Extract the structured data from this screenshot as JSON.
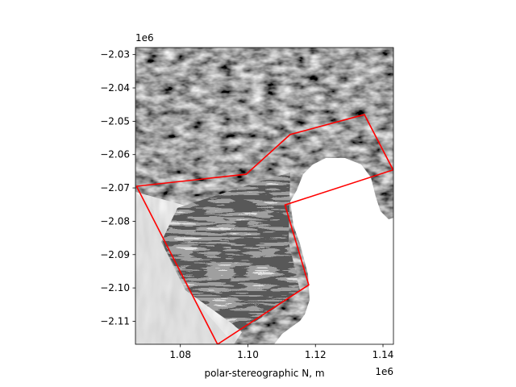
{
  "chart_data": {
    "type": "image",
    "xlabel": "polar-stereographic N, m",
    "ylabel": "",
    "x_offset_label": "1e6",
    "y_offset_label": "1e6",
    "xlim": [
      1.0667,
      1.1431
    ],
    "ylim": [
      -2.1169,
      -2.0279
    ],
    "x_ticks": [
      {
        "value": 1.08,
        "label": "1.08"
      },
      {
        "value": 1.1,
        "label": "1.10"
      },
      {
        "value": 1.12,
        "label": "1.12"
      },
      {
        "value": 1.14,
        "label": "1.14"
      }
    ],
    "y_ticks": [
      {
        "value": -2.03,
        "label": "−2.03"
      },
      {
        "value": -2.04,
        "label": "−2.04"
      },
      {
        "value": -2.05,
        "label": "−2.05"
      },
      {
        "value": -2.06,
        "label": "−2.06"
      },
      {
        "value": -2.07,
        "label": "−2.07"
      },
      {
        "value": -2.08,
        "label": "−2.08"
      },
      {
        "value": -2.09,
        "label": "−2.09"
      },
      {
        "value": -2.1,
        "label": "−2.10"
      },
      {
        "value": -2.11,
        "label": "−2.11"
      }
    ],
    "outline": {
      "color": "#ff0000",
      "points": [
        [
          1.067,
          -2.0695
        ],
        [
          1.0995,
          -2.0659
        ],
        [
          1.1125,
          -2.054
        ],
        [
          1.1345,
          -2.048
        ],
        [
          1.143,
          -2.0646
        ],
        [
          1.111,
          -2.0751
        ],
        [
          1.118,
          -2.0991
        ],
        [
          1.091,
          -2.1169
        ],
        [
          1.067,
          -2.0695
        ]
      ]
    },
    "background": {
      "description_colors": [
        "#1c1c1c",
        "#8a8a8a",
        "#d2d2d2",
        "#ffffff"
      ],
      "rendering": "grayscale hillshade"
    }
  }
}
